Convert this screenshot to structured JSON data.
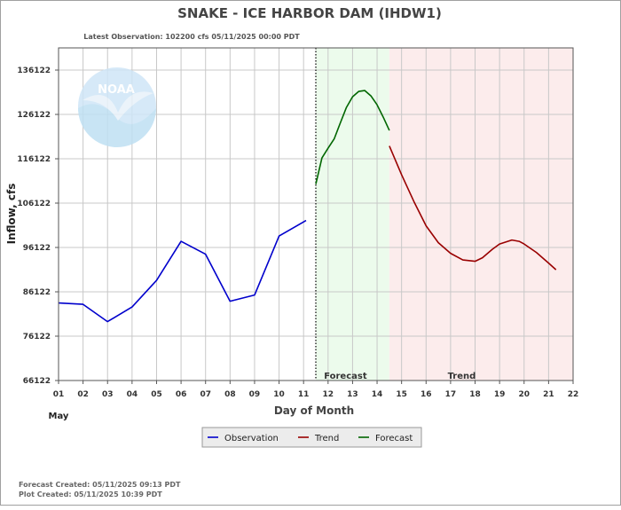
{
  "header": {
    "title": "SNAKE - ICE HARBOR DAM  (IHDW1)",
    "latest_observation": "Latest Observation: 102200 cfs 05/11/2025 00:00 PDT"
  },
  "footer": {
    "forecast_created": "Forecast Created: 05/11/2025 09:13 PDT",
    "plot_created": "Plot Created: 05/11/2025 10:39 PDT"
  },
  "logo": {
    "text": "NOAA",
    "colors": {
      "sky": "#cfe6f7",
      "sea": "#bfe0f3",
      "wing": "#e8f2fa"
    }
  },
  "regions": {
    "forecast_label": "Forecast",
    "trend_label": "Trend",
    "forecast_color": "#ecfbec",
    "trend_color": "#fcecec"
  },
  "chart_data": {
    "type": "line",
    "title": "SNAKE - ICE HARBOR DAM  (IHDW1)",
    "xlabel": "Day of Month",
    "xlabel_month": "May",
    "ylabel": "Inflow, cfs",
    "xlim": [
      1,
      22
    ],
    "ylim": [
      66122,
      141122
    ],
    "xticks": [
      "01",
      "02",
      "03",
      "04",
      "05",
      "06",
      "07",
      "08",
      "09",
      "10",
      "11",
      "12",
      "13",
      "14",
      "15",
      "16",
      "17",
      "18",
      "19",
      "20",
      "21",
      "22"
    ],
    "yticks": [
      66122,
      76122,
      86122,
      96122,
      106122,
      116122,
      126122,
      136122
    ],
    "grid": true,
    "observation_time_x": 11.5,
    "forecast_band": [
      11.5,
      14.5
    ],
    "trend_band": [
      14.5,
      22
    ],
    "legend_position": "bottom-center",
    "series": [
      {
        "name": "Observation",
        "color": "#0000cc",
        "x": [
          1,
          2,
          3,
          4,
          5,
          6,
          7,
          8,
          9,
          10,
          11.1
        ],
        "y": [
          83600,
          83300,
          79400,
          82700,
          88700,
          97500,
          94600,
          84000,
          85400,
          98700,
          102200
        ]
      },
      {
        "name": "Trend",
        "color": "#990000",
        "x": [
          14.5,
          15,
          15.5,
          16,
          16.5,
          17,
          17.5,
          18,
          18.3,
          18.7,
          19,
          19.5,
          19.8,
          20,
          20.5,
          21,
          21.3
        ],
        "y": [
          119000,
          112500,
          106500,
          101000,
          97200,
          94800,
          93300,
          93000,
          93800,
          95700,
          96900,
          97800,
          97500,
          96900,
          95000,
          92600,
          91100
        ]
      },
      {
        "name": "Forecast",
        "color": "#006600",
        "x": [
          11.5,
          11.75,
          12,
          12.25,
          12.5,
          12.75,
          13,
          13.25,
          13.5,
          13.75,
          14,
          14.25,
          14.5
        ],
        "y": [
          110400,
          116300,
          118500,
          120600,
          124200,
          127700,
          130100,
          131300,
          131500,
          130300,
          128300,
          125500,
          122500
        ]
      }
    ]
  }
}
